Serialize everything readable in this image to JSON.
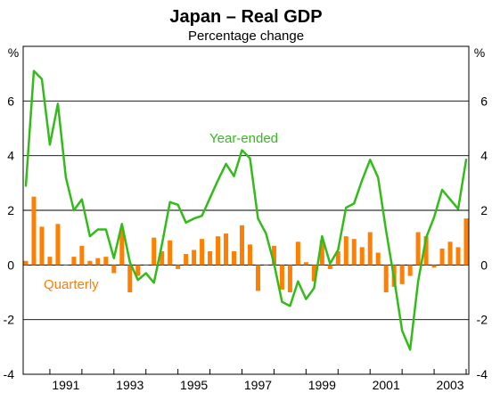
{
  "chart_data": {
    "type": "bar",
    "title": "Japan – Real GDP",
    "subtitle": "Percentage change",
    "y_unit_left": "%",
    "y_unit_right": "%",
    "ylim": [
      -4,
      8
    ],
    "y_ticks": [
      "-4",
      "-2",
      "0",
      "2",
      "4",
      "6"
    ],
    "x_ticks": [
      "1991",
      "1993",
      "1995",
      "1997",
      "1999",
      "2001",
      "2003"
    ],
    "grid": true,
    "series": [
      {
        "name": "Quarterly",
        "type": "bar",
        "color": "#ff7f00",
        "values": [
          0.15,
          2.5,
          1.4,
          0.3,
          1.5,
          0.0,
          0.3,
          0.7,
          0.15,
          0.25,
          0.3,
          -0.3,
          1.3,
          -1.0,
          -0.4,
          0.0,
          1.0,
          0.5,
          0.9,
          -0.15,
          0.4,
          0.55,
          0.95,
          0.5,
          1.05,
          1.15,
          0.5,
          1.45,
          0.75,
          -0.95,
          0.0,
          0.7,
          -0.9,
          -1.0,
          0.85,
          0.1,
          -0.6,
          0.9,
          -0.15,
          0.5,
          1.05,
          0.95,
          0.65,
          1.2,
          0.45,
          -1.0,
          -0.8,
          -0.7,
          -0.4,
          1.2,
          1.05,
          -0.1,
          0.6,
          0.85,
          0.65,
          1.7
        ]
      },
      {
        "name": "Year-ended",
        "type": "line",
        "color": "#33bb1a",
        "values": [
          2.9,
          7.1,
          6.8,
          4.4,
          5.9,
          3.2,
          2.0,
          2.4,
          1.05,
          1.3,
          1.3,
          0.25,
          1.5,
          0.1,
          -0.55,
          -0.3,
          -0.65,
          0.75,
          2.3,
          2.2,
          1.55,
          1.7,
          1.8,
          2.45,
          3.1,
          3.7,
          3.25,
          4.2,
          3.9,
          1.7,
          1.15,
          0.05,
          -1.35,
          -1.5,
          -0.6,
          -1.25,
          -0.85,
          1.05,
          0.05,
          0.55,
          2.1,
          2.25,
          3.1,
          3.85,
          3.2,
          1.25,
          -0.5,
          -2.4,
          -3.1,
          -0.6,
          1.0,
          1.75,
          2.75,
          2.4,
          2.05,
          3.85
        ]
      }
    ]
  }
}
